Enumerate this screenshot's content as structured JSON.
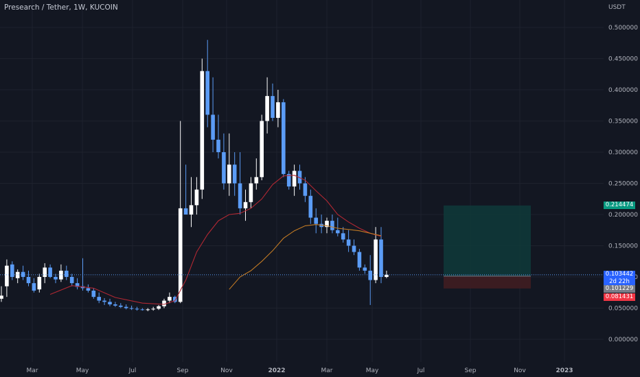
{
  "header": {
    "symbol_title": "Presearch / Tether, 1W, KUCOIN",
    "currency": "USDT"
  },
  "price_tags": {
    "target": {
      "label": "0.214474",
      "value": 0.214474,
      "color": "#089981"
    },
    "current": {
      "label": "0.103442",
      "value": 0.103442,
      "color": "#2962ff"
    },
    "timer": {
      "label": "2d 22h"
    },
    "entry": {
      "label": "0.101229",
      "value": 0.101229,
      "color": "#787b86"
    },
    "stop": {
      "label": "0.081431",
      "value": 0.081431,
      "color": "#f23645"
    }
  },
  "colors": {
    "up": "#ffffff",
    "down": "#5b9cf6",
    "ma_short": "#b22833",
    "ma_long": "#c27a24",
    "profit_zone": "#0f3a3a",
    "loss_zone": "#3d1c22"
  },
  "chart_data": {
    "type": "candlestick",
    "interval": "1W",
    "y_axis": {
      "min": -0.01,
      "max": 0.51,
      "ticks": [
        "0.500000",
        "0.450000",
        "0.400000",
        "0.350000",
        "0.300000",
        "0.250000",
        "0.200000",
        "0.150000",
        "0.100000",
        "0.050000",
        "0.000000"
      ]
    },
    "x_axis": {
      "ticks": [
        "Mar",
        "May",
        "Jul",
        "Sep",
        "Nov",
        "2022",
        "Mar",
        "May",
        "Jul",
        "Sep",
        "Nov",
        "2023"
      ]
    },
    "candles": [
      [
        0.065,
        0.085,
        0.06,
        0.07
      ],
      [
        0.085,
        0.128,
        0.068,
        0.118
      ],
      [
        0.12,
        0.125,
        0.095,
        0.1
      ],
      [
        0.098,
        0.112,
        0.09,
        0.108
      ],
      [
        0.108,
        0.118,
        0.095,
        0.1
      ],
      [
        0.1,
        0.11,
        0.085,
        0.09
      ],
      [
        0.09,
        0.098,
        0.075,
        0.078
      ],
      [
        0.08,
        0.105,
        0.075,
        0.1
      ],
      [
        0.1,
        0.122,
        0.09,
        0.115
      ],
      [
        0.115,
        0.12,
        0.098,
        0.1
      ],
      [
        0.1,
        0.105,
        0.09,
        0.096
      ],
      [
        0.096,
        0.12,
        0.092,
        0.11
      ],
      [
        0.11,
        0.118,
        0.095,
        0.1
      ],
      [
        0.1,
        0.105,
        0.085,
        0.09
      ],
      [
        0.09,
        0.098,
        0.08,
        0.084
      ],
      [
        0.085,
        0.13,
        0.078,
        0.082
      ],
      [
        0.082,
        0.088,
        0.075,
        0.078
      ],
      [
        0.078,
        0.082,
        0.065,
        0.068
      ],
      [
        0.068,
        0.075,
        0.058,
        0.062
      ],
      [
        0.062,
        0.066,
        0.055,
        0.06
      ],
      [
        0.06,
        0.065,
        0.053,
        0.056
      ],
      [
        0.056,
        0.06,
        0.052,
        0.054
      ],
      [
        0.054,
        0.058,
        0.05,
        0.052
      ],
      [
        0.052,
        0.056,
        0.048,
        0.05
      ],
      [
        0.05,
        0.054,
        0.047,
        0.049
      ],
      [
        0.049,
        0.052,
        0.046,
        0.048
      ],
      [
        0.048,
        0.05,
        0.046,
        0.047
      ],
      [
        0.047,
        0.05,
        0.045,
        0.048
      ],
      [
        0.048,
        0.052,
        0.046,
        0.049
      ],
      [
        0.049,
        0.055,
        0.047,
        0.053
      ],
      [
        0.053,
        0.065,
        0.05,
        0.062
      ],
      [
        0.062,
        0.075,
        0.058,
        0.068
      ],
      [
        0.068,
        0.07,
        0.058,
        0.06
      ],
      [
        0.06,
        0.35,
        0.058,
        0.21
      ],
      [
        0.21,
        0.28,
        0.2,
        0.2
      ],
      [
        0.2,
        0.26,
        0.18,
        0.215
      ],
      [
        0.215,
        0.26,
        0.2,
        0.24
      ],
      [
        0.24,
        0.45,
        0.225,
        0.43
      ],
      [
        0.43,
        0.48,
        0.34,
        0.36
      ],
      [
        0.36,
        0.42,
        0.3,
        0.32
      ],
      [
        0.32,
        0.36,
        0.29,
        0.3
      ],
      [
        0.3,
        0.33,
        0.24,
        0.25
      ],
      [
        0.25,
        0.33,
        0.23,
        0.28
      ],
      [
        0.28,
        0.3,
        0.23,
        0.25
      ],
      [
        0.25,
        0.3,
        0.2,
        0.21
      ],
      [
        0.21,
        0.24,
        0.19,
        0.22
      ],
      [
        0.22,
        0.26,
        0.21,
        0.25
      ],
      [
        0.25,
        0.29,
        0.24,
        0.26
      ],
      [
        0.26,
        0.36,
        0.255,
        0.35
      ],
      [
        0.35,
        0.42,
        0.33,
        0.39
      ],
      [
        0.39,
        0.41,
        0.35,
        0.355
      ],
      [
        0.355,
        0.4,
        0.34,
        0.38
      ],
      [
        0.38,
        0.385,
        0.26,
        0.265
      ],
      [
        0.265,
        0.27,
        0.24,
        0.245
      ],
      [
        0.245,
        0.28,
        0.23,
        0.27
      ],
      [
        0.27,
        0.28,
        0.24,
        0.25
      ],
      [
        0.25,
        0.26,
        0.22,
        0.23
      ],
      [
        0.23,
        0.24,
        0.185,
        0.195
      ],
      [
        0.195,
        0.21,
        0.17,
        0.185
      ],
      [
        0.185,
        0.2,
        0.17,
        0.18
      ],
      [
        0.18,
        0.195,
        0.17,
        0.19
      ],
      [
        0.19,
        0.2,
        0.17,
        0.175
      ],
      [
        0.175,
        0.195,
        0.165,
        0.17
      ],
      [
        0.17,
        0.18,
        0.155,
        0.16
      ],
      [
        0.16,
        0.175,
        0.14,
        0.15
      ],
      [
        0.15,
        0.16,
        0.135,
        0.14
      ],
      [
        0.14,
        0.145,
        0.11,
        0.115
      ],
      [
        0.115,
        0.12,
        0.105,
        0.11
      ],
      [
        0.11,
        0.135,
        0.055,
        0.095
      ],
      [
        0.095,
        0.18,
        0.09,
        0.16
      ],
      [
        0.16,
        0.18,
        0.09,
        0.1
      ],
      [
        0.1,
        0.11,
        0.098,
        0.1034
      ]
    ],
    "ma_short": [
      [
        9,
        0.072
      ],
      [
        13,
        0.086
      ],
      [
        17,
        0.082
      ],
      [
        21,
        0.067
      ],
      [
        26,
        0.058
      ],
      [
        30,
        0.056
      ],
      [
        32,
        0.062
      ],
      [
        34,
        0.095
      ],
      [
        36,
        0.14
      ],
      [
        38,
        0.168
      ],
      [
        40,
        0.19
      ],
      [
        42,
        0.2
      ],
      [
        44,
        0.202
      ],
      [
        46,
        0.21
      ],
      [
        48,
        0.225
      ],
      [
        50,
        0.248
      ],
      [
        52,
        0.262
      ],
      [
        54,
        0.263
      ],
      [
        56,
        0.255
      ],
      [
        58,
        0.238
      ],
      [
        60,
        0.222
      ],
      [
        62,
        0.2
      ],
      [
        64,
        0.188
      ],
      [
        66,
        0.178
      ],
      [
        68,
        0.17
      ],
      [
        70,
        0.165
      ]
    ],
    "ma_long": [
      [
        42,
        0.08
      ],
      [
        44,
        0.1
      ],
      [
        46,
        0.11
      ],
      [
        48,
        0.125
      ],
      [
        50,
        0.142
      ],
      [
        52,
        0.162
      ],
      [
        54,
        0.174
      ],
      [
        56,
        0.182
      ],
      [
        58,
        0.184
      ],
      [
        60,
        0.182
      ],
      [
        62,
        0.178
      ],
      [
        64,
        0.176
      ],
      [
        66,
        0.174
      ],
      [
        68,
        0.17
      ],
      [
        70,
        0.166
      ]
    ],
    "position": {
      "entry": 0.101229,
      "target": 0.214474,
      "stop": 0.081431,
      "start_week": 83.5,
      "end_week": 94.5
    }
  }
}
